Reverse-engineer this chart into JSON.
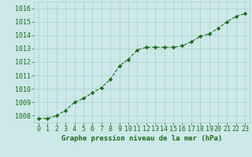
{
  "x": [
    0,
    1,
    2,
    3,
    4,
    5,
    6,
    7,
    8,
    9,
    10,
    11,
    12,
    13,
    14,
    15,
    16,
    17,
    18,
    19,
    20,
    21,
    22,
    23
  ],
  "y": [
    1007.8,
    1007.8,
    1008.0,
    1008.4,
    1009.0,
    1009.3,
    1009.7,
    1010.1,
    1010.7,
    1011.7,
    1012.2,
    1012.9,
    1013.1,
    1013.1,
    1013.1,
    1013.1,
    1013.2,
    1013.5,
    1013.9,
    1014.1,
    1014.5,
    1015.0,
    1015.4,
    1015.6
  ],
  "line_color": "#1a6b1a",
  "marker_color": "#1a6b1a",
  "bg_color": "#cce8e8",
  "grid_color": "#aacccc",
  "xlabel": "Graphe pression niveau de la mer (hPa)",
  "xlabel_color": "#1a6b1a",
  "ylim_min": 1007.5,
  "ylim_max": 1016.5,
  "xlim_min": -0.5,
  "xlim_max": 23.5,
  "yticks": [
    1008,
    1009,
    1010,
    1011,
    1012,
    1013,
    1014,
    1015,
    1016
  ],
  "xticks": [
    0,
    1,
    2,
    3,
    4,
    5,
    6,
    7,
    8,
    9,
    10,
    11,
    12,
    13,
    14,
    15,
    16,
    17,
    18,
    19,
    20,
    21,
    22,
    23
  ],
  "tick_label_color": "#1a6b1a",
  "tick_label_fontsize": 6.0,
  "xlabel_fontsize": 6.5
}
